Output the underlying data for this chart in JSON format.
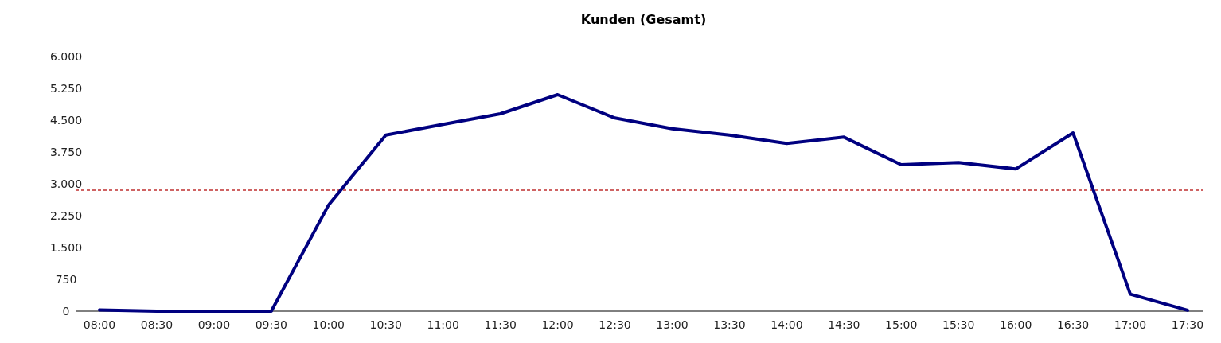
{
  "chart_data": {
    "type": "line",
    "title": "Kunden (Gesamt)",
    "categories": [
      "08:00",
      "08:30",
      "09:00",
      "09:30",
      "10:00",
      "10:30",
      "11:00",
      "11:30",
      "12:00",
      "12:30",
      "13:00",
      "13:30",
      "14:00",
      "14:30",
      "15:00",
      "15:30",
      "16:00",
      "16:30",
      "17:00",
      "17:30"
    ],
    "series": [
      {
        "color": "#000080",
        "values": [
          30,
          0,
          0,
          0,
          2500,
          4150,
          4400,
          4650,
          5100,
          4550,
          4300,
          4150,
          3950,
          4100,
          3450,
          3500,
          3350,
          4200,
          400,
          20
        ]
      }
    ],
    "ylim": [
      0,
      6000
    ],
    "yticks": [
      {
        "value": 0,
        "label": "0"
      },
      {
        "value": 750,
        "label": "750"
      },
      {
        "value": 1500,
        "label": "1.500"
      },
      {
        "value": 2250,
        "label": "2.250"
      },
      {
        "value": 3000,
        "label": "3.000"
      },
      {
        "value": 3750,
        "label": "3.750"
      },
      {
        "value": 4500,
        "label": "4.500"
      },
      {
        "value": 5250,
        "label": "5.250"
      },
      {
        "value": 6000,
        "label": "6.000"
      }
    ],
    "ref_lines": [
      {
        "axis": "y",
        "value": 2850,
        "color": "#c03030",
        "line_style": "dashed"
      }
    ],
    "marker": "none",
    "line_style": "solid"
  }
}
